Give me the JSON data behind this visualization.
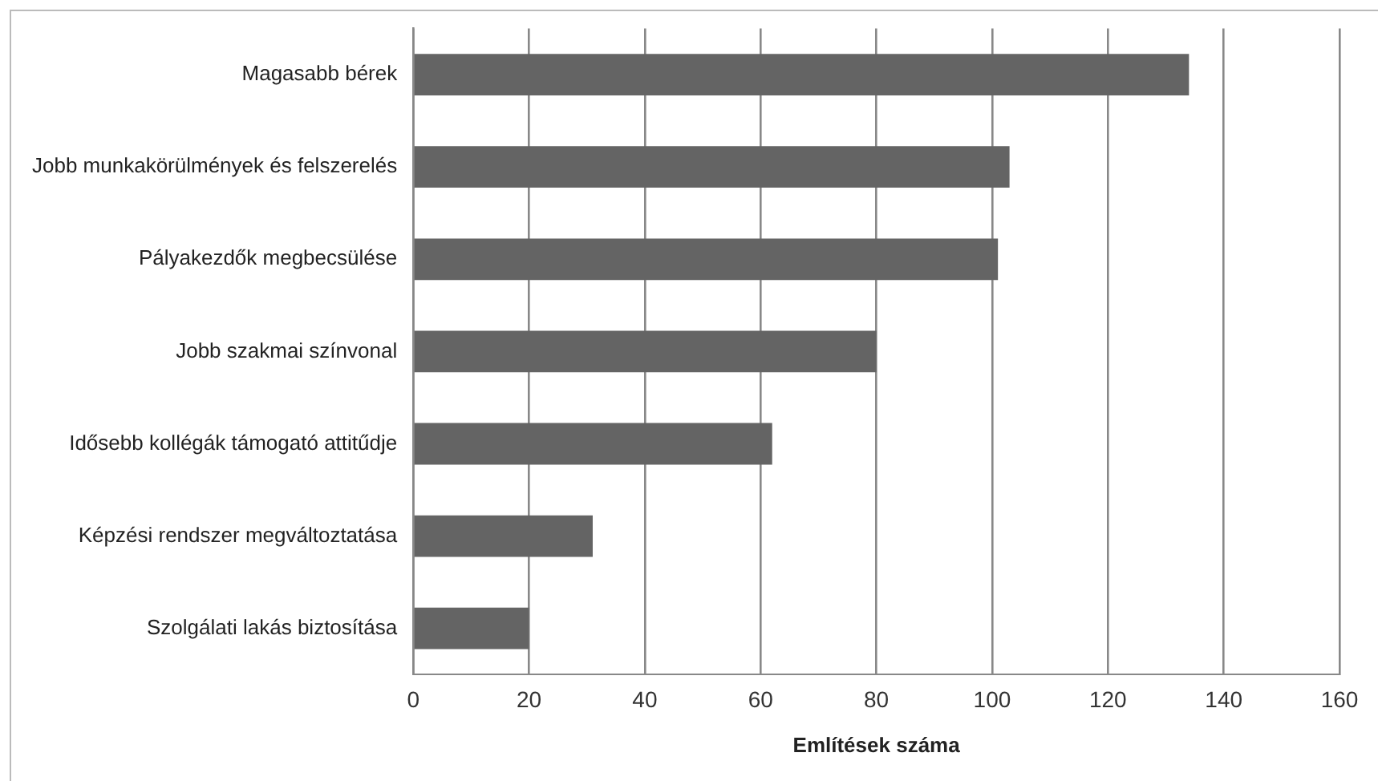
{
  "chart_data": {
    "type": "bar",
    "orientation": "horizontal",
    "xlabel": "Említések száma",
    "categories": [
      "Magasabb bérek",
      "Jobb munkakörülmények és felszerelés",
      "Pályakezdők megbecsülése",
      "Jobb szakmai színvonal",
      "Idősebb kollégák támogató attitűdje",
      "Képzési rendszer megváltoztatása",
      "Szolgálati lakás biztosítása"
    ],
    "values": [
      134,
      103,
      101,
      80,
      62,
      31,
      20
    ],
    "color": "#646464",
    "xlim": [
      0,
      160
    ],
    "xticks": [
      0,
      20,
      40,
      60,
      80,
      100,
      120,
      140,
      160
    ],
    "grid": "x",
    "legend": false
  }
}
